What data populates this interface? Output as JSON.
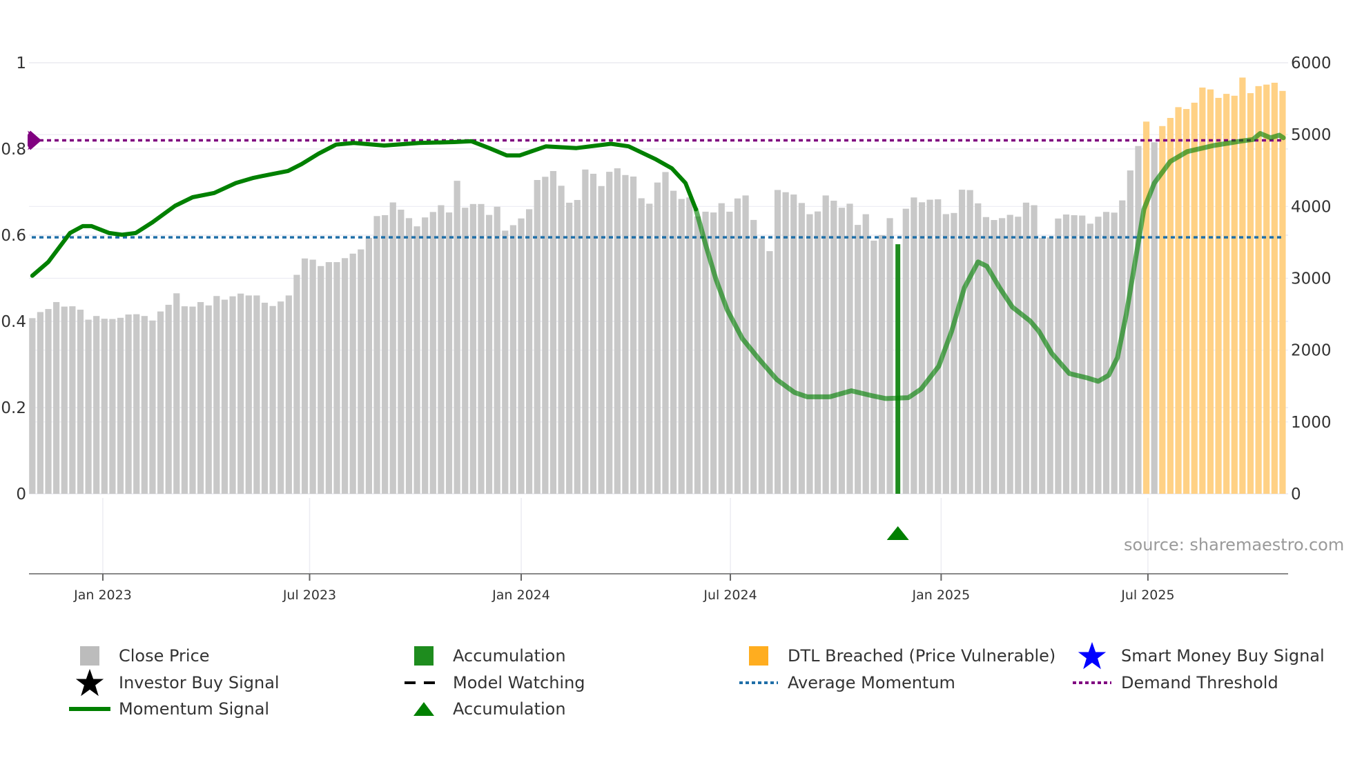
{
  "chart_data": {
    "type": "bar",
    "title": "",
    "left_axis": {
      "ticks": [
        "0",
        "0.2",
        "0.4",
        "0.6",
        "0.8",
        "1"
      ],
      "range": [
        0,
        1
      ]
    },
    "right_axis": {
      "ticks": [
        "0",
        "1000",
        "2000",
        "3000",
        "4000",
        "5000",
        "6000"
      ],
      "range": [
        0,
        6000
      ]
    },
    "x_axis": {
      "ticks": [
        {
          "label": "Jan 2023",
          "week": 8.8
        },
        {
          "label": "Jul 2023",
          "week": 34.6
        },
        {
          "label": "Jan 2024",
          "week": 61.0
        },
        {
          "label": "Jul 2024",
          "week": 87.1
        },
        {
          "label": "Jan 2025",
          "week": 113.4
        },
        {
          "label": "Jul 2025",
          "week": 139.2
        }
      ]
    },
    "close_price": [
      2445,
      2530,
      2572,
      2669,
      2606,
      2610,
      2563,
      2424,
      2475,
      2437,
      2433,
      2450,
      2496,
      2500,
      2475,
      2412,
      2538,
      2631,
      2791,
      2610,
      2606,
      2669,
      2622,
      2753,
      2702,
      2749,
      2787,
      2761,
      2761,
      2660,
      2614,
      2677,
      2761,
      3048,
      3276,
      3259,
      3170,
      3225,
      3225,
      3280,
      3343,
      3402,
      3563,
      3866,
      3879,
      4056,
      3955,
      3837,
      3723,
      3847,
      3923,
      4017,
      3916,
      4357,
      3982,
      4034,
      4034,
      3882,
      3996,
      3663,
      3739,
      3833,
      3961,
      4368,
      4413,
      4493,
      4288,
      4052,
      4090,
      4514,
      4455,
      4284,
      4482,
      4531,
      4437,
      4416,
      4114,
      4038,
      4333,
      4479,
      4218,
      4104,
      4125,
      3861,
      3927,
      3916,
      4045,
      3927,
      4111,
      4153,
      3812,
      3555,
      3378,
      4229,
      4198,
      4166,
      4048,
      3892,
      3930,
      4153,
      4080,
      3982,
      4038,
      3743,
      3892,
      3524,
      3600,
      3837,
      3760,
      3968,
      4125,
      4058,
      4094,
      4099,
      3893,
      3909,
      4233,
      4228,
      4043,
      3852,
      3811,
      3837,
      3883,
      3857,
      4053,
      4017,
      3564,
      3569,
      3832,
      3888,
      3878,
      3873,
      3760,
      3857,
      3924,
      3914,
      4084,
      4501,
      4841,
      5181,
      4893,
      5119,
      5232,
      5382,
      5356,
      5444,
      5655,
      5629,
      5511,
      5567,
      5541,
      5794,
      5577,
      5675,
      5696,
      5722,
      5608
    ],
    "accumulation_weeks": [
      108
    ],
    "dtl_breached_weeks": [
      139,
      141,
      142,
      143,
      144,
      145,
      146,
      147,
      148,
      149,
      150,
      151,
      152,
      153,
      154,
      155,
      156
    ],
    "accumulation_marker_weeks": [
      108
    ],
    "momentum_signal": [
      [
        0,
        0.506
      ],
      [
        2,
        0.538
      ],
      [
        4.7,
        0.605
      ],
      [
        6.3,
        0.621
      ],
      [
        7.4,
        0.621
      ],
      [
        9.6,
        0.605
      ],
      [
        11.2,
        0.601
      ],
      [
        12.9,
        0.605
      ],
      [
        15,
        0.63
      ],
      [
        17.8,
        0.668
      ],
      [
        20,
        0.688
      ],
      [
        22.7,
        0.698
      ],
      [
        25.4,
        0.721
      ],
      [
        27.6,
        0.733
      ],
      [
        29.7,
        0.741
      ],
      [
        31.9,
        0.749
      ],
      [
        33.6,
        0.765
      ],
      [
        35.7,
        0.789
      ],
      [
        37.9,
        0.81
      ],
      [
        40.1,
        0.814
      ],
      [
        43.9,
        0.808
      ],
      [
        48.3,
        0.814
      ],
      [
        52.6,
        0.816
      ],
      [
        54.8,
        0.818
      ],
      [
        57,
        0.802
      ],
      [
        59.2,
        0.785
      ],
      [
        60.8,
        0.785
      ],
      [
        64.1,
        0.806
      ],
      [
        67.9,
        0.802
      ],
      [
        72.2,
        0.812
      ],
      [
        74.4,
        0.806
      ],
      [
        77.7,
        0.777
      ],
      [
        79.8,
        0.755
      ],
      [
        81.5,
        0.721
      ],
      [
        82.8,
        0.66
      ],
      [
        84,
        0.579
      ],
      [
        85.3,
        0.498
      ],
      [
        86.7,
        0.427
      ],
      [
        88.6,
        0.36
      ],
      [
        90.7,
        0.312
      ],
      [
        92.9,
        0.265
      ],
      [
        95.1,
        0.235
      ],
      [
        96.7,
        0.225
      ],
      [
        99.5,
        0.225
      ],
      [
        102.2,
        0.239
      ],
      [
        104.9,
        0.227
      ],
      [
        106.5,
        0.221
      ],
      [
        109.3,
        0.223
      ],
      [
        110.9,
        0.243
      ],
      [
        113.1,
        0.296
      ],
      [
        114.7,
        0.377
      ],
      [
        116.3,
        0.478
      ],
      [
        118,
        0.538
      ],
      [
        119.1,
        0.528
      ],
      [
        120.7,
        0.478
      ],
      [
        122.3,
        0.433
      ],
      [
        124.5,
        0.401
      ],
      [
        125.6,
        0.377
      ],
      [
        127.2,
        0.326
      ],
      [
        129.4,
        0.279
      ],
      [
        131.6,
        0.269
      ],
      [
        133,
        0.261
      ],
      [
        134.3,
        0.275
      ],
      [
        135.4,
        0.316
      ],
      [
        136.5,
        0.417
      ],
      [
        137.6,
        0.538
      ],
      [
        138.7,
        0.66
      ],
      [
        140,
        0.721
      ],
      [
        142,
        0.771
      ],
      [
        144.1,
        0.794
      ],
      [
        147.4,
        0.808
      ],
      [
        150.7,
        0.818
      ],
      [
        152.3,
        0.822
      ],
      [
        153.2,
        0.836
      ],
      [
        154.5,
        0.826
      ],
      [
        155.6,
        0.832
      ],
      [
        156.1,
        0.826
      ]
    ],
    "average_momentum": 0.595,
    "demand_threshold": 0.82,
    "legend": {
      "close_price": "Close Price",
      "accumulation_bar": "Accumulation",
      "dtl_breached": "DTL Breached (Price Vulnerable)",
      "smart_money": "Smart Money Buy Signal",
      "investor_buy": "Investor Buy Signal",
      "model_watching": "Model Watching",
      "average_momentum": "Average Momentum",
      "demand_threshold": "Demand Threshold",
      "momentum_signal": "Momentum Signal",
      "accumulation_marker": "Accumulation"
    },
    "legend_placement": "bottom",
    "grid": true
  },
  "colors": {
    "close_price": "#c8c8c8",
    "accumulation": "#1e8c1e",
    "dtl_breached": "#ffd185",
    "dtl_legend": "#ffad1f",
    "momentum": "#008000",
    "average_momentum": "#1f6fa8",
    "demand_threshold": "#800080",
    "smart_money": "#0000ff"
  },
  "source": "source: sharemaestro.com"
}
